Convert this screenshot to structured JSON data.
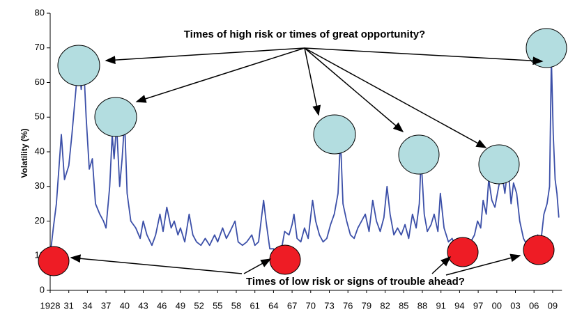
{
  "chart_data": {
    "type": "line",
    "y_label": "Volatility (%)",
    "annotations": [
      "Times of high risk or times of great opportunity?",
      "Times of low risk or signs of trouble ahead?"
    ],
    "xlim": [
      1928,
      2010.5
    ],
    "ylim": [
      0,
      80
    ],
    "yticks": [
      0,
      10,
      20,
      30,
      40,
      50,
      60,
      70,
      80
    ],
    "xticks": [
      1928,
      {
        "value": 1931,
        "label": "31"
      },
      {
        "value": 1934,
        "label": "34"
      },
      {
        "value": 1937,
        "label": "37"
      },
      {
        "value": 1940,
        "label": "40"
      },
      {
        "value": 1943,
        "label": "43"
      },
      {
        "value": 1946,
        "label": "46"
      },
      {
        "value": 1949,
        "label": "49"
      },
      {
        "value": 1952,
        "label": "52"
      },
      {
        "value": 1955,
        "label": "55"
      },
      {
        "value": 1958,
        "label": "58"
      },
      {
        "value": 1961,
        "label": "61"
      },
      {
        "value": 1964,
        "label": "64"
      },
      {
        "value": 1967,
        "label": "67"
      },
      {
        "value": 1970,
        "label": "70"
      },
      {
        "value": 1973,
        "label": "73"
      },
      {
        "value": 1976,
        "label": "76"
      },
      {
        "value": 1979,
        "label": "79"
      },
      {
        "value": 1982,
        "label": "82"
      },
      {
        "value": 1985,
        "label": "85"
      },
      {
        "value": 1988,
        "label": "88"
      },
      {
        "value": 1991,
        "label": "91"
      },
      {
        "value": 1994,
        "label": "94"
      },
      {
        "value": 1997,
        "label": "97"
      },
      {
        "value": 2000,
        "label": "00"
      },
      {
        "value": 2003,
        "label": "03"
      },
      {
        "value": 2006,
        "label": "06"
      },
      {
        "value": 2009,
        "label": "09"
      }
    ],
    "series": [
      {
        "name": "Volatility",
        "color": "#3b4fa8",
        "x": [
          1928,
          1928.5,
          1929,
          1929.8,
          1930.3,
          1931,
          1931.5,
          1932,
          1932.6,
          1933,
          1933.4,
          1933.8,
          1934.3,
          1934.8,
          1935.3,
          1936,
          1936.6,
          1937,
          1937.6,
          1938,
          1938.3,
          1938.7,
          1939.2,
          1939.6,
          1940,
          1940.4,
          1941,
          1941.8,
          1942.5,
          1943,
          1943.6,
          1944.4,
          1945,
          1945.7,
          1946.2,
          1946.8,
          1947.5,
          1948,
          1948.6,
          1949,
          1949.7,
          1950.4,
          1951,
          1951.6,
          1952.3,
          1953,
          1953.7,
          1954.5,
          1955,
          1955.8,
          1956.4,
          1957,
          1957.8,
          1958.3,
          1959,
          1959.7,
          1960.5,
          1961,
          1961.6,
          1962.4,
          1962.8,
          1963.4,
          1964,
          1964.7,
          1965.3,
          1965.8,
          1966.5,
          1967,
          1967.3,
          1967.8,
          1968.4,
          1969,
          1969.6,
          1970.3,
          1970.8,
          1971.4,
          1972,
          1972.6,
          1973.2,
          1973.8,
          1974.4,
          1974.8,
          1975.2,
          1975.8,
          1976.4,
          1977,
          1977.6,
          1978.2,
          1978.8,
          1979.4,
          1980,
          1980.6,
          1981.2,
          1981.8,
          1982.3,
          1982.8,
          1983.4,
          1984,
          1984.6,
          1985.2,
          1985.8,
          1986.4,
          1987,
          1987.5,
          1987.8,
          1988.3,
          1988.8,
          1989.4,
          1989.9,
          1990.5,
          1990.9,
          1991.5,
          1992.2,
          1992.8,
          1993.4,
          1994,
          1994.5,
          1995.2,
          1995.8,
          1996.4,
          1996.9,
          1997.4,
          1997.8,
          1998.3,
          1998.7,
          1999.2,
          1999.7,
          2000.3,
          2000.8,
          2001.3,
          2001.8,
          2002.3,
          2002.7,
          2003.2,
          2003.7,
          2004.3,
          2004.9,
          2005.5,
          2006.1,
          2006.6,
          2007.1,
          2007.6,
          2008.1,
          2008.5,
          2008.8,
          2009.1,
          2009.4,
          2009.7,
          2010
        ],
        "values": [
          10,
          18,
          25,
          45,
          32,
          36,
          45,
          55,
          67,
          58,
          65,
          50,
          35,
          38,
          25,
          22,
          20,
          18,
          30,
          45,
          38,
          48,
          30,
          38,
          49,
          28,
          20,
          18,
          15,
          20,
          16,
          13,
          16,
          22,
          17,
          24,
          18,
          20,
          16,
          18,
          14,
          22,
          16,
          14,
          13,
          15,
          13,
          16,
          14,
          18,
          15,
          17,
          20,
          14,
          13,
          14,
          16,
          13,
          14,
          26,
          20,
          12,
          12,
          10,
          12,
          17,
          16,
          19,
          22,
          15,
          14,
          18,
          15,
          26,
          20,
          16,
          14,
          15,
          19,
          22,
          28,
          44,
          25,
          20,
          16,
          15,
          18,
          20,
          22,
          17,
          26,
          20,
          17,
          21,
          30,
          22,
          16,
          18,
          16,
          19,
          15,
          22,
          18,
          25,
          38,
          22,
          17,
          19,
          22,
          17,
          28,
          18,
          14,
          15,
          12,
          13,
          15,
          12,
          14,
          16,
          20,
          18,
          26,
          22,
          32,
          26,
          24,
          30,
          34,
          28,
          36,
          25,
          31,
          28,
          20,
          15,
          13,
          12,
          13,
          16,
          14,
          22,
          25,
          30,
          67,
          45,
          32,
          28,
          21
        ]
      }
    ]
  }
}
